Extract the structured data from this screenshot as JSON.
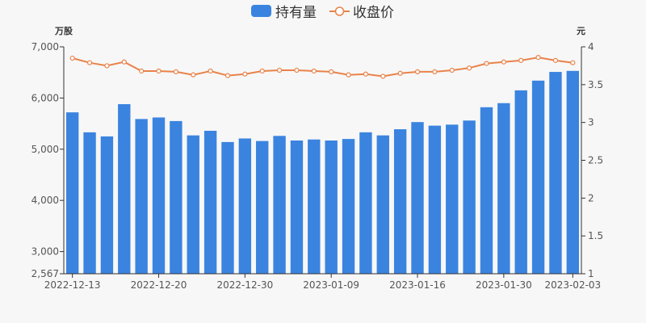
{
  "chart_data": {
    "type": "bar+line",
    "legend": {
      "position": "top-center",
      "items": [
        {
          "label": "持有量",
          "kind": "bar",
          "color": "#3a84e0"
        },
        {
          "label": "收盘价",
          "kind": "line",
          "color": "#e8834a"
        }
      ]
    },
    "y_left": {
      "unit": "万股",
      "min": 2567,
      "max": 7000,
      "ticks": [
        "2,567",
        "3,000",
        "4,000",
        "5,000",
        "6,000",
        "7,000"
      ],
      "tick_values": [
        2567,
        3000,
        4000,
        5000,
        6000,
        7000
      ]
    },
    "y_right": {
      "unit": "元",
      "min": 1,
      "max": 4,
      "ticks": [
        "1",
        "1.5",
        "2",
        "2.5",
        "3",
        "3.5",
        "4"
      ],
      "tick_values": [
        1,
        1.5,
        2,
        2.5,
        3,
        3.5,
        4
      ]
    },
    "x_tick_labels": [
      {
        "label": "2022-12-13",
        "index": 0
      },
      {
        "label": "2022-12-20",
        "index": 5
      },
      {
        "label": "2022-12-30",
        "index": 10
      },
      {
        "label": "2023-01-09",
        "index": 15
      },
      {
        "label": "2023-01-16",
        "index": 20
      },
      {
        "label": "2023-01-30",
        "index": 25
      },
      {
        "label": "2023-02-03",
        "index": 29
      }
    ],
    "grid": false,
    "series": [
      {
        "name": "持有量",
        "type": "bar",
        "color": "#3a84e0",
        "values": [
          5720,
          5330,
          5250,
          5880,
          5590,
          5620,
          5550,
          5270,
          5360,
          5140,
          5210,
          5160,
          5260,
          5170,
          5190,
          5170,
          5200,
          5330,
          5270,
          5390,
          5530,
          5460,
          5480,
          5560,
          5820,
          5900,
          6150,
          6340,
          6510,
          6530
        ]
      },
      {
        "name": "收盘价",
        "type": "line",
        "color": "#e8834a",
        "values": [
          3.85,
          3.79,
          3.75,
          3.8,
          3.68,
          3.68,
          3.67,
          3.63,
          3.68,
          3.62,
          3.64,
          3.68,
          3.69,
          3.69,
          3.68,
          3.67,
          3.63,
          3.64,
          3.61,
          3.65,
          3.67,
          3.67,
          3.69,
          3.72,
          3.78,
          3.8,
          3.82,
          3.86,
          3.82,
          3.79
        ]
      }
    ]
  }
}
